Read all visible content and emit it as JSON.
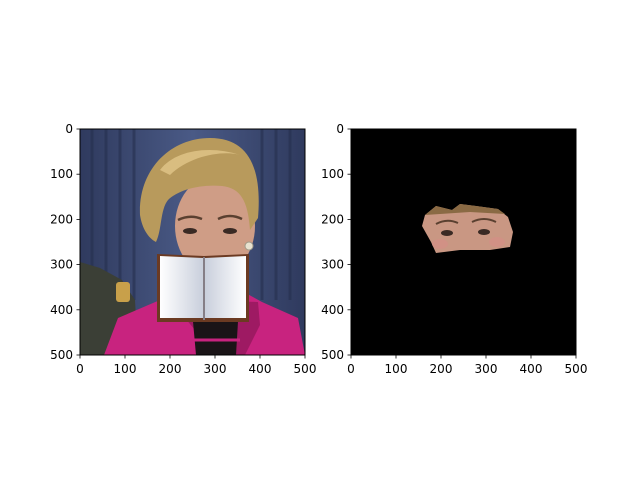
{
  "chart_data": [
    {
      "type": "image",
      "image": "photo of a short-haired woman in a pink jacket in front of a blue curtain, her mouth and chin covered by an open book",
      "xlim": [
        0,
        500
      ],
      "ylim": [
        500,
        0
      ],
      "xticks": [
        "0",
        "100",
        "200",
        "300",
        "400",
        "500"
      ],
      "yticks": [
        "0",
        "100",
        "200",
        "300",
        "400",
        "500"
      ],
      "colors": {
        "curtain": "#3d4a6e",
        "hair": "#b89a5c",
        "jacket": "#c8237f",
        "book": "#f5f5f7"
      }
    },
    {
      "type": "image",
      "image": "mask on a black background showing only the woman's eye region",
      "xlim": [
        0,
        500
      ],
      "ylim": [
        500,
        0
      ],
      "xticks": [
        "0",
        "100",
        "200",
        "300",
        "400",
        "500"
      ],
      "yticks": [
        "0",
        "100",
        "200",
        "300",
        "400",
        "500"
      ],
      "colors": {
        "background": "#000000",
        "skin": "#c99783"
      }
    }
  ]
}
